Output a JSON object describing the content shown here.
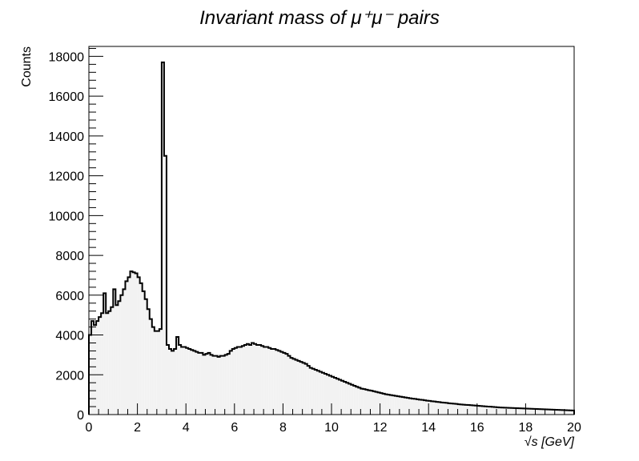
{
  "chart_data": {
    "type": "histogram",
    "title": "Invariant   mass   of   μ⁺μ⁻   pairs",
    "xlabel": "√s   [GeV]",
    "ylabel": "Counts",
    "xlim": [
      0,
      20
    ],
    "ylim": [
      0,
      18500
    ],
    "x_ticks": [
      0,
      2,
      4,
      6,
      8,
      10,
      12,
      14,
      16,
      18,
      20
    ],
    "y_ticks": [
      0,
      2000,
      4000,
      6000,
      8000,
      10000,
      12000,
      14000,
      16000,
      18000
    ],
    "grid": false,
    "legend": "none",
    "bin_width": 0.1,
    "fill_color": "#f2f2f2",
    "line_color": "#000000",
    "values": [
      4000,
      4700,
      4500,
      4700,
      4900,
      5100,
      6100,
      5100,
      5200,
      5400,
      6300,
      5500,
      5700,
      6000,
      6300,
      6700,
      6900,
      7200,
      7150,
      7100,
      6900,
      6600,
      6200,
      5800,
      5300,
      4800,
      4400,
      4200,
      4200,
      4300,
      17700,
      13000,
      3500,
      3300,
      3200,
      3300,
      3900,
      3500,
      3400,
      3400,
      3350,
      3300,
      3250,
      3200,
      3150,
      3100,
      3100,
      3000,
      3050,
      3100,
      3000,
      2950,
      2950,
      2900,
      2950,
      2950,
      3000,
      3050,
      3200,
      3300,
      3350,
      3400,
      3400,
      3450,
      3500,
      3550,
      3500,
      3600,
      3550,
      3500,
      3500,
      3450,
      3400,
      3400,
      3350,
      3300,
      3300,
      3250,
      3200,
      3150,
      3100,
      3050,
      2950,
      2850,
      2800,
      2750,
      2700,
      2650,
      2600,
      2550,
      2450,
      2350,
      2300,
      2250,
      2200,
      2150,
      2100,
      2050,
      2000,
      1950,
      1900,
      1850,
      1800,
      1750,
      1700,
      1650,
      1600,
      1550,
      1500,
      1450,
      1400,
      1350,
      1300,
      1280,
      1250,
      1220,
      1200,
      1170,
      1140,
      1110,
      1080,
      1050,
      1020,
      1000,
      980,
      960,
      940,
      920,
      900,
      880,
      860,
      840,
      820,
      800,
      790,
      770,
      750,
      740,
      720,
      700,
      690,
      670,
      660,
      640,
      630,
      610,
      600,
      590,
      570,
      560,
      550,
      540,
      520,
      510,
      500,
      490,
      480,
      470,
      460,
      450,
      440,
      430,
      420,
      410,
      400,
      395,
      385,
      375,
      365,
      355,
      350,
      345,
      340,
      335,
      330,
      325,
      320,
      315,
      310,
      305,
      300,
      295,
      290,
      285,
      280,
      275,
      270,
      265,
      260,
      255,
      250,
      245,
      240,
      235,
      230,
      225,
      220,
      215,
      210,
      205
    ]
  }
}
